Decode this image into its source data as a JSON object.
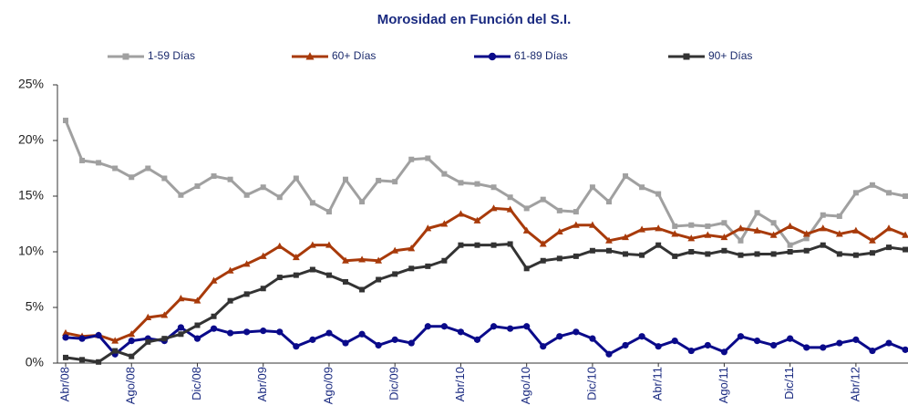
{
  "chart_data": {
    "type": "line",
    "title": "Morosidad en Función del S.I.",
    "categories": [
      "Abr/08",
      null,
      null,
      null,
      "Ago/08",
      null,
      null,
      null,
      "Dic/08",
      null,
      null,
      null,
      "Abr/09",
      null,
      null,
      null,
      "Ago/09",
      null,
      null,
      null,
      "Dic/09",
      null,
      null,
      null,
      "Abr/10",
      null,
      null,
      null,
      "Ago/10",
      null,
      null,
      null,
      "Dic/10",
      null,
      null,
      null,
      "Abr/11",
      null,
      null,
      null,
      "Ago/11",
      null,
      null,
      null,
      "Dic/11",
      null,
      null,
      null,
      "Abr/12",
      null,
      null,
      null
    ],
    "series": [
      {
        "name": "1-59 Días",
        "color": "#a0a0a0",
        "marker": "square",
        "values": [
          21.8,
          18.2,
          18.0,
          17.5,
          16.7,
          17.5,
          16.6,
          15.1,
          15.9,
          16.8,
          16.5,
          15.1,
          15.8,
          14.9,
          16.6,
          14.4,
          13.6,
          16.5,
          14.5,
          16.4,
          16.3,
          18.3,
          18.4,
          17.0,
          16.2,
          16.1,
          15.8,
          14.9,
          13.9,
          14.7,
          13.7,
          13.6,
          15.8,
          14.5,
          16.8,
          15.8,
          15.2,
          12.3,
          12.4,
          12.3,
          12.6,
          11.0,
          13.5,
          12.6,
          10.6,
          11.2,
          13.3,
          13.2,
          15.3,
          16.0,
          15.3,
          15.0
        ]
      },
      {
        "name": "60+ Días",
        "color": "#a83a0a",
        "marker": "triangle",
        "values": [
          2.7,
          2.4,
          2.5,
          2.0,
          2.6,
          4.1,
          4.3,
          5.8,
          5.6,
          7.4,
          8.3,
          8.9,
          9.6,
          10.5,
          9.5,
          10.6,
          10.6,
          9.2,
          9.3,
          9.2,
          10.1,
          10.3,
          12.1,
          12.5,
          13.4,
          12.8,
          13.9,
          13.8,
          11.9,
          10.7,
          11.8,
          12.4,
          12.4,
          11.0,
          11.3,
          12.0,
          12.1,
          11.6,
          11.2,
          11.5,
          11.3,
          12.1,
          11.9,
          11.5,
          12.3,
          11.6,
          12.1,
          11.6,
          11.9,
          11.0,
          12.1,
          11.5
        ]
      },
      {
        "name": "61-89 Días",
        "color": "#0a0a8a",
        "marker": "circle",
        "values": [
          2.3,
          2.2,
          2.5,
          0.8,
          2.0,
          2.2,
          2.0,
          3.2,
          2.2,
          3.1,
          2.7,
          2.8,
          2.9,
          2.8,
          1.5,
          2.1,
          2.7,
          1.8,
          2.6,
          1.6,
          2.1,
          1.8,
          3.3,
          3.3,
          2.8,
          2.1,
          3.3,
          3.1,
          3.3,
          1.5,
          2.4,
          2.8,
          2.2,
          0.8,
          1.6,
          2.4,
          1.5,
          2.0,
          1.1,
          1.6,
          1.0,
          2.4,
          2.0,
          1.6,
          2.2,
          1.4,
          1.4,
          1.8,
          2.1,
          1.1,
          1.8,
          1.2
        ]
      },
      {
        "name": "90+ Días",
        "color": "#333333",
        "marker": "square",
        "values": [
          0.5,
          0.3,
          0.1,
          1.1,
          0.6,
          1.9,
          2.2,
          2.6,
          3.4,
          4.2,
          5.6,
          6.2,
          6.7,
          7.7,
          7.9,
          8.4,
          7.9,
          7.3,
          6.6,
          7.5,
          8.0,
          8.5,
          8.7,
          9.2,
          10.6,
          10.6,
          10.6,
          10.7,
          8.5,
          9.2,
          9.4,
          9.6,
          10.1,
          10.1,
          9.8,
          9.7,
          10.6,
          9.6,
          10.0,
          9.8,
          10.1,
          9.7,
          9.8,
          9.8,
          10.0,
          10.1,
          10.6,
          9.8,
          9.7,
          9.9,
          10.4,
          10.2
        ]
      }
    ],
    "ylim": [
      0,
      25
    ],
    "yticks": [
      {
        "value": 0,
        "label": "0%"
      },
      {
        "value": 5,
        "label": "5%"
      },
      {
        "value": 10,
        "label": "10%"
      },
      {
        "value": 15,
        "label": "15%"
      },
      {
        "value": 20,
        "label": "20%"
      },
      {
        "value": 25,
        "label": "25%"
      }
    ],
    "grid": false,
    "legend": "top"
  }
}
